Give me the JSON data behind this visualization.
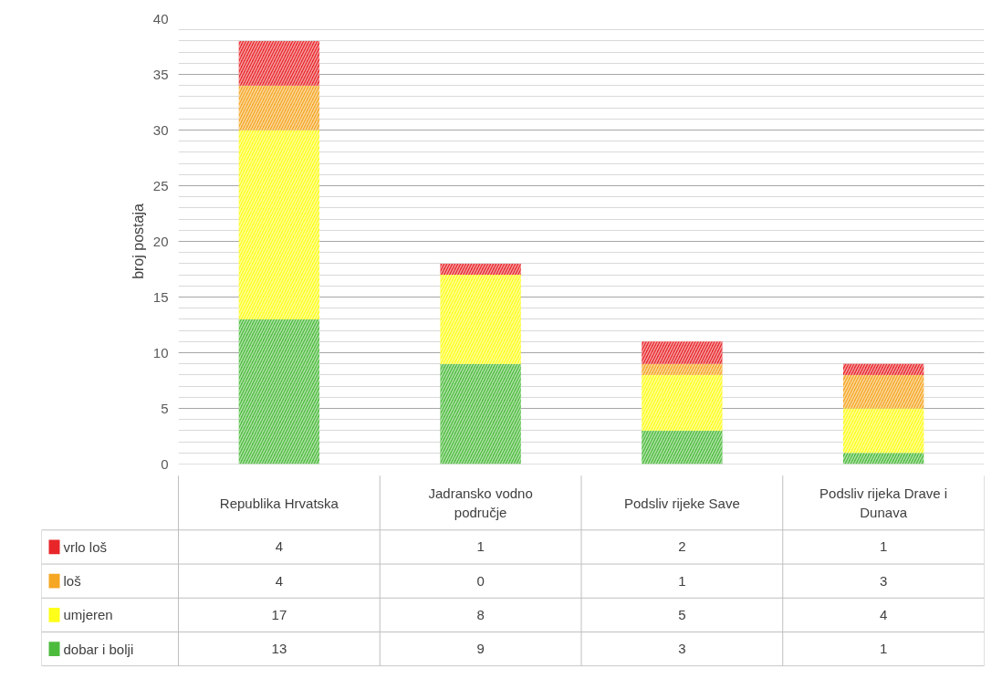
{
  "chart_data": {
    "type": "bar",
    "stacked": true,
    "ylabel": "broj postaja",
    "categories": [
      "Republika Hrvatska",
      "Jadransko vodno područje",
      "Podsliv rijeke Save",
      "Podsliv rijeka Drave i Dunava"
    ],
    "series": [
      {
        "name": "dobar i bolji",
        "color": "#4cbb3c",
        "values": [
          13,
          9,
          3,
          1
        ]
      },
      {
        "name": "umjeren",
        "color": "#ffff1a",
        "values": [
          17,
          8,
          5,
          4
        ]
      },
      {
        "name": "loš",
        "color": "#f5a623",
        "values": [
          4,
          0,
          1,
          3
        ]
      },
      {
        "name": "vrlo loš",
        "color": "#e8262a",
        "values": [
          4,
          1,
          2,
          1
        ]
      }
    ],
    "ylim": [
      0,
      40
    ],
    "yticks": [
      0,
      5,
      10,
      15,
      20,
      25,
      30,
      35,
      40
    ],
    "grid": "y",
    "legend": "bottom",
    "data_labels": true
  }
}
